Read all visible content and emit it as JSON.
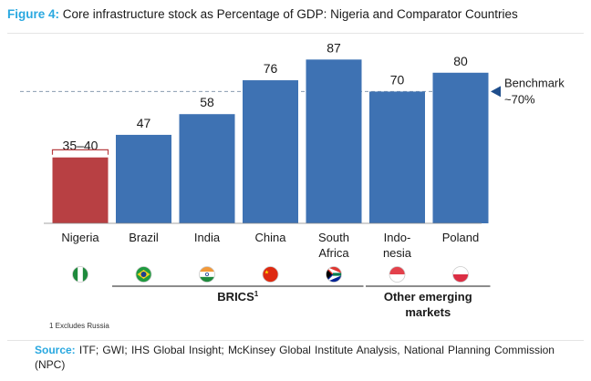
{
  "figure": {
    "label": "Figure 4:",
    "title": "Core infrastructure stock as Percentage of GDP: Nigeria and Comparator Countries"
  },
  "chart_data": {
    "type": "bar",
    "categories": [
      "Nigeria",
      "Brazil",
      "India",
      "China",
      "South Africa",
      "Indo-nesia",
      "Poland"
    ],
    "category_lines": [
      [
        "Nigeria"
      ],
      [
        "Brazil"
      ],
      [
        "India"
      ],
      [
        "China"
      ],
      [
        "South",
        "Africa"
      ],
      [
        "Indo-",
        "nesia"
      ],
      [
        "Poland"
      ]
    ],
    "values": [
      37.5,
      47,
      58,
      76,
      87,
      70,
      80
    ],
    "value_labels": [
      "35–40",
      "47",
      "58",
      "76",
      "87",
      "70",
      "80"
    ],
    "range_bar": {
      "index": 0,
      "low": 35,
      "high": 40
    },
    "ylim": [
      0,
      92
    ],
    "benchmark": {
      "value": 70,
      "label_lines": [
        "Benchmark",
        "~70%"
      ]
    },
    "groups": [
      {
        "label": "BRICS",
        "superscript": "1",
        "from": 1,
        "to": 4
      },
      {
        "label_lines": [
          "Other emerging",
          "markets"
        ],
        "from": 5,
        "to": 6
      }
    ],
    "footnote": "1 Excludes Russia",
    "colors": {
      "nigeria": "#b84043",
      "others": "#3e72b3",
      "benchmark": "#8a9cb0",
      "arrow": "#1f4e8c"
    }
  },
  "flags": [
    "nigeria-flag",
    "brazil-flag",
    "india-flag",
    "china-flag",
    "south-africa-flag",
    "indonesia-flag",
    "poland-flag"
  ],
  "source": {
    "label": "Source:",
    "text": "ITF; GWI; IHS Global Insight; McKinsey Global Institute Analysis, National Planning Commission (NPC)"
  }
}
